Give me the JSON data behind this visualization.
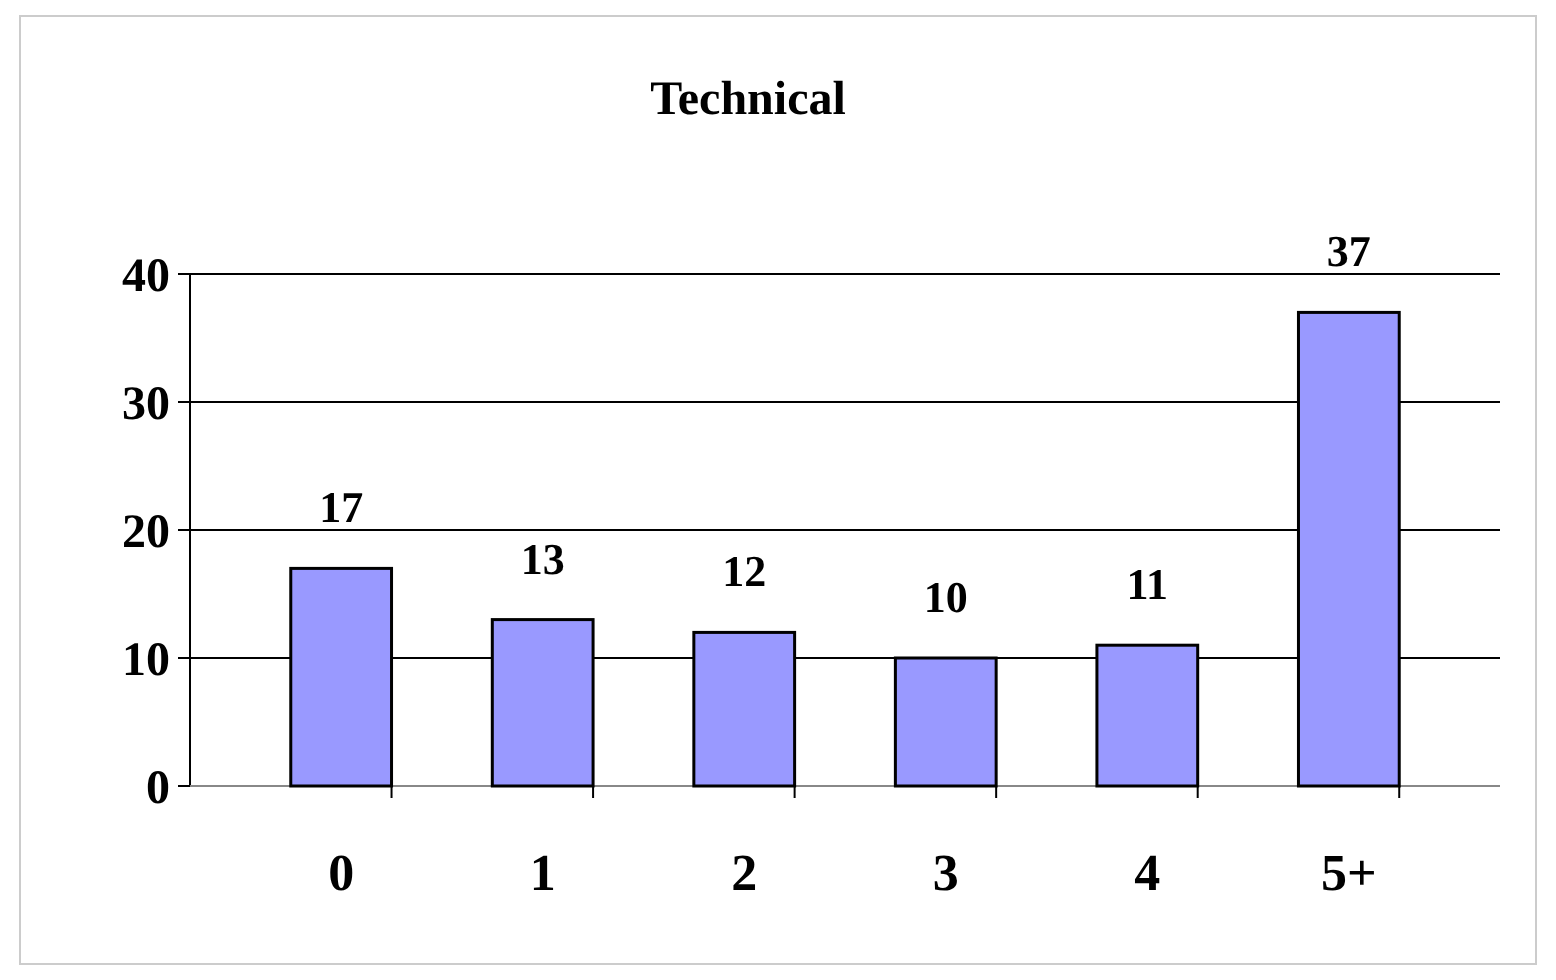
{
  "chart_data": {
    "type": "bar",
    "title": "Technical",
    "categories": [
      "0",
      "1",
      "2",
      "3",
      "4",
      "5+"
    ],
    "values": [
      17,
      13,
      12,
      10,
      11,
      37
    ],
    "color": "#9999ff",
    "ylim": [
      0,
      40
    ],
    "yticks": [
      0,
      10,
      20,
      30,
      40
    ],
    "grid": "y",
    "data_labels": true
  }
}
